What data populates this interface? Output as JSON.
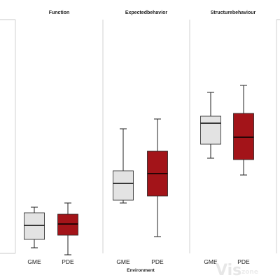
{
  "chart_data": {
    "type": "box",
    "xlabel": "Environment",
    "categories": [
      "GME",
      "PDE"
    ],
    "colors": {
      "GME": "#e3e3e3",
      "PDE": "#a31419"
    },
    "ylim": [
      0,
      100
    ],
    "panels": [
      {
        "title": "Function",
        "boxes": [
          {
            "group": "GME",
            "min": 11.5,
            "q1": 14.5,
            "median": 19.5,
            "q3": 24,
            "max": 26
          },
          {
            "group": "PDE",
            "min": 9,
            "q1": 16,
            "median": 20,
            "q3": 23.5,
            "max": 27.5
          }
        ]
      },
      {
        "title": "Expectedbehavior",
        "boxes": [
          {
            "group": "GME",
            "min": 27.5,
            "q1": 28.5,
            "median": 34.5,
            "q3": 39,
            "max": 54
          },
          {
            "group": "PDE",
            "min": 15.5,
            "q1": 30,
            "median": 38,
            "q3": 46,
            "max": 57.5
          }
        ]
      },
      {
        "title": "Structurebehaviour",
        "boxes": [
          {
            "group": "GME",
            "min": 43.5,
            "q1": 48.5,
            "median": 56,
            "q3": 58.5,
            "max": 67
          },
          {
            "group": "PDE",
            "min": 37.5,
            "q1": 43,
            "median": 51,
            "q3": 59.5,
            "max": 69.5
          }
        ]
      }
    ]
  },
  "watermark": {
    "main": "Vis",
    "sub": "zone"
  }
}
